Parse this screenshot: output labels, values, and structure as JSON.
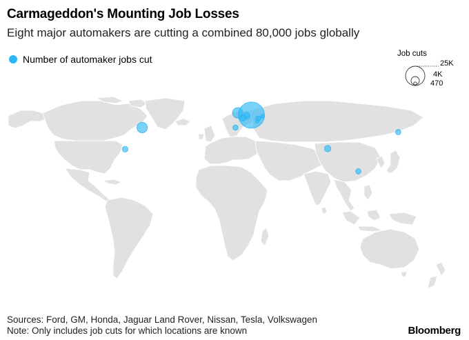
{
  "title": "Carmageddon's Mounting Job Losses",
  "subtitle": "Eight major automakers are cutting a combined 80,000 jobs globally",
  "legend": {
    "label": "Number of automaker jobs cut",
    "color": "#29b6f6"
  },
  "size_legend": {
    "title": "Job cuts",
    "entries": [
      {
        "label": "25K",
        "value": 25000
      },
      {
        "label": "4K",
        "value": 4000
      },
      {
        "label": "470",
        "value": 470
      }
    ]
  },
  "footer": {
    "sources": "Sources: Ford, GM, Honda, Jaguar Land Rover, Nissan, Tesla, Volkswagen",
    "note": "Note: Only includes job cuts for which locations are known"
  },
  "brand": "Bloomberg",
  "colors": {
    "land": "#e1e1e1",
    "bubble": "#29b6f6",
    "background": "#ffffff"
  },
  "chart_data": {
    "type": "scatter",
    "title": "Carmageddon's Mounting Job Losses",
    "subtitle": "Eight major automakers are cutting a combined 80,000 jobs globally",
    "series": [
      {
        "name": "Number of automaker jobs cut",
        "points": [
          {
            "lon": 10.0,
            "lat": 51.0,
            "value": 25000
          },
          {
            "lon": -2.0,
            "lat": 53.0,
            "value": 4000
          },
          {
            "lon": 2.5,
            "lat": 48.5,
            "value": 1500
          },
          {
            "lon": 6.0,
            "lat": 50.5,
            "value": 1500
          },
          {
            "lon": 16.0,
            "lat": 48.0,
            "value": 1000
          },
          {
            "lon": 20.0,
            "lat": 50.0,
            "value": 600
          },
          {
            "lon": 15.0,
            "lat": 45.5,
            "value": 470
          },
          {
            "lon": -4.0,
            "lat": 40.0,
            "value": 1000
          },
          {
            "lon": -86.0,
            "lat": 40.0,
            "value": 4000
          },
          {
            "lon": -101.0,
            "lat": 21.0,
            "value": 1200
          },
          {
            "lon": 77.0,
            "lat": 21.5,
            "value": 1500
          },
          {
            "lon": 104.0,
            "lat": 1.5,
            "value": 1000
          },
          {
            "lon": 139.0,
            "lat": 36.0,
            "value": 1000
          }
        ]
      }
    ]
  }
}
